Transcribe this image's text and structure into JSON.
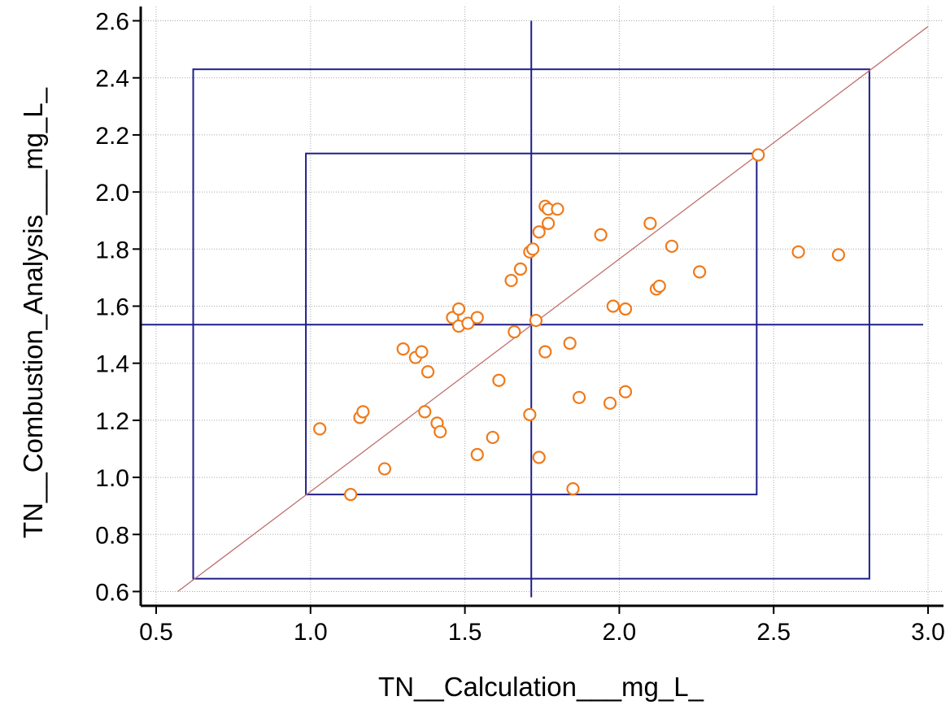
{
  "colors": {
    "grid": "#a8a8a8",
    "axis": "#000000",
    "points": "#f07a1a",
    "reference_lines": "#1f1f8a",
    "identity_line": "#c07070",
    "background": "#ffffff"
  },
  "chart_data": {
    "type": "scatter",
    "title": "",
    "xlabel": "TN__Calculation___mg_L_",
    "ylabel": "TN__Combustion_Analysis___mg_L_",
    "xlim": [
      0.45,
      3.05
    ],
    "ylim": [
      0.55,
      2.65
    ],
    "xticks": [
      0.5,
      1.0,
      1.5,
      2.0,
      2.5,
      3.0
    ],
    "xtick_labels": [
      "0.5",
      "1.0",
      "1.5",
      "2.0",
      "2.5",
      "3.0"
    ],
    "yticks": [
      0.6,
      0.8,
      1.0,
      1.2,
      1.4,
      1.6,
      1.8,
      2.0,
      2.2,
      2.4,
      2.6
    ],
    "ytick_labels": [
      "0.6",
      "0.8",
      "1.0",
      "1.2",
      "1.4",
      "1.6",
      "1.8",
      "2.0",
      "2.2",
      "2.4",
      "2.6"
    ],
    "grid": true,
    "legend": "none",
    "identity_line": {
      "from": [
        0.57,
        0.6
      ],
      "to": [
        3.0,
        2.58
      ]
    },
    "mean_lines": {
      "x": 1.715,
      "y": 1.535
    },
    "inner_box": {
      "x": [
        0.985,
        2.445
      ],
      "y": [
        0.94,
        2.135
      ]
    },
    "outer_box": {
      "x": [
        0.62,
        2.81
      ],
      "y": [
        0.645,
        2.43
      ]
    },
    "points": [
      {
        "x": 1.03,
        "y": 1.17
      },
      {
        "x": 1.13,
        "y": 0.94
      },
      {
        "x": 1.16,
        "y": 1.21
      },
      {
        "x": 1.17,
        "y": 1.23
      },
      {
        "x": 1.24,
        "y": 1.03
      },
      {
        "x": 1.3,
        "y": 1.45
      },
      {
        "x": 1.34,
        "y": 1.42
      },
      {
        "x": 1.36,
        "y": 1.44
      },
      {
        "x": 1.37,
        "y": 1.23
      },
      {
        "x": 1.38,
        "y": 1.37
      },
      {
        "x": 1.41,
        "y": 1.19
      },
      {
        "x": 1.42,
        "y": 1.16
      },
      {
        "x": 1.46,
        "y": 1.56
      },
      {
        "x": 1.48,
        "y": 1.59
      },
      {
        "x": 1.48,
        "y": 1.53
      },
      {
        "x": 1.51,
        "y": 1.54
      },
      {
        "x": 1.54,
        "y": 1.56
      },
      {
        "x": 1.54,
        "y": 1.08
      },
      {
        "x": 1.59,
        "y": 1.14
      },
      {
        "x": 1.61,
        "y": 1.34
      },
      {
        "x": 1.65,
        "y": 1.69
      },
      {
        "x": 1.66,
        "y": 1.51
      },
      {
        "x": 1.68,
        "y": 1.73
      },
      {
        "x": 1.71,
        "y": 1.79
      },
      {
        "x": 1.72,
        "y": 1.8
      },
      {
        "x": 1.71,
        "y": 1.22
      },
      {
        "x": 1.73,
        "y": 1.55
      },
      {
        "x": 1.74,
        "y": 1.86
      },
      {
        "x": 1.74,
        "y": 1.07
      },
      {
        "x": 1.76,
        "y": 1.95
      },
      {
        "x": 1.77,
        "y": 1.94
      },
      {
        "x": 1.77,
        "y": 1.89
      },
      {
        "x": 1.76,
        "y": 1.44
      },
      {
        "x": 1.8,
        "y": 1.94
      },
      {
        "x": 1.84,
        "y": 1.47
      },
      {
        "x": 1.85,
        "y": 0.96
      },
      {
        "x": 1.87,
        "y": 1.28
      },
      {
        "x": 1.94,
        "y": 1.85
      },
      {
        "x": 1.97,
        "y": 1.26
      },
      {
        "x": 1.98,
        "y": 1.6
      },
      {
        "x": 2.02,
        "y": 1.59
      },
      {
        "x": 2.02,
        "y": 1.3
      },
      {
        "x": 2.1,
        "y": 1.89
      },
      {
        "x": 2.12,
        "y": 1.66
      },
      {
        "x": 2.13,
        "y": 1.67
      },
      {
        "x": 2.17,
        "y": 1.81
      },
      {
        "x": 2.26,
        "y": 1.72
      },
      {
        "x": 2.45,
        "y": 2.13
      },
      {
        "x": 2.58,
        "y": 1.79
      },
      {
        "x": 2.71,
        "y": 1.78
      }
    ]
  }
}
